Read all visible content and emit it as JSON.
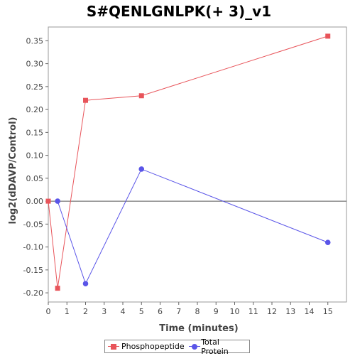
{
  "chart_data": {
    "type": "line",
    "title": "S#QENLGNLPK(+ 3)_v1",
    "xlabel": "Time (minutes)",
    "ylabel": "log2(dDAVP/Control)",
    "xlim": [
      0,
      16
    ],
    "ylim": [
      -0.22,
      0.38
    ],
    "xticks": [
      0,
      1,
      2,
      3,
      4,
      5,
      6,
      7,
      8,
      9,
      10,
      11,
      12,
      13,
      14,
      15
    ],
    "yticks": [
      -0.2,
      -0.15,
      -0.1,
      -0.05,
      0.0,
      0.05,
      0.1,
      0.15,
      0.2,
      0.25,
      0.3,
      0.35
    ],
    "grid": false,
    "zero_line": true,
    "legend_position": "bottom",
    "series": [
      {
        "name": "Phosphopeptide",
        "color": "#e8545a",
        "marker": "square",
        "x": [
          0,
          0.5,
          2,
          5,
          15
        ],
        "y": [
          0.0,
          -0.19,
          0.22,
          0.23,
          0.36
        ]
      },
      {
        "name": "Total Protein",
        "color": "#5a55e8",
        "marker": "circle",
        "x": [
          0.5,
          2,
          5,
          15
        ],
        "y": [
          0.0,
          -0.18,
          0.07,
          -0.09
        ]
      }
    ]
  }
}
